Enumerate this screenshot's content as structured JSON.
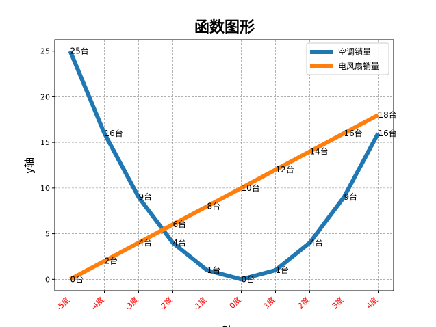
{
  "chart_data": {
    "type": "line",
    "title": "函数图形",
    "xlabel": "x轴",
    "ylabel": "y轴",
    "categories": [
      "-5度",
      "-4度",
      "-3度",
      "-2度",
      "-1度",
      "0度",
      "1度",
      "2度",
      "3度",
      "4度"
    ],
    "x": [
      -5,
      -4,
      -3,
      -2,
      -1,
      0,
      1,
      2,
      3,
      4
    ],
    "series": [
      {
        "name": "空调销量",
        "color": "#1f77b4",
        "values": [
          25,
          16,
          9,
          4,
          1,
          0,
          1,
          4,
          9,
          16
        ],
        "labels": [
          "25台",
          "16台",
          "9台",
          "4台",
          "1台",
          "0台",
          "1台",
          "4台",
          "9台",
          "16台"
        ]
      },
      {
        "name": "电风扇销量",
        "color": "#ff7f0e",
        "values": [
          0,
          2,
          4,
          6,
          8,
          10,
          12,
          14,
          16,
          18
        ],
        "labels": [
          "0台",
          "2台",
          "4台",
          "6台",
          "8台",
          "10台",
          "12台",
          "14台",
          "16台",
          "18台"
        ]
      }
    ],
    "xlim": [
      -5.45,
      4.45
    ],
    "ylim": [
      -1.25,
      26.25
    ],
    "yticks": [
      0,
      5,
      10,
      15,
      20,
      25
    ],
    "grid": true,
    "grid_style": "dashed",
    "legend": "top-right",
    "tick_label_color": "#ff0000"
  }
}
